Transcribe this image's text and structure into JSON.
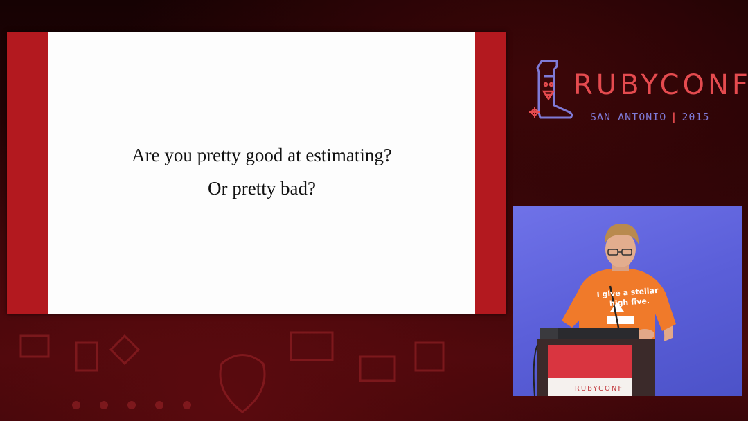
{
  "slide": {
    "line1": "Are you pretty good at estimating?",
    "line2": "Or pretty bad?"
  },
  "logo": {
    "title": "RUBYCONF",
    "city": "SAN ANTONIO",
    "year": "2015"
  },
  "speaker": {
    "shirt_line1": "I give a stellar",
    "shirt_line2": "high five.",
    "podium_brand": "RUBYCONF"
  },
  "colors": {
    "slide_border": "#b3191f",
    "logo_red": "#e54b4f",
    "logo_purple": "#7f7ad6",
    "speaker_backdrop": "#5b5fd9",
    "shirt_orange": "#f07a2a"
  }
}
